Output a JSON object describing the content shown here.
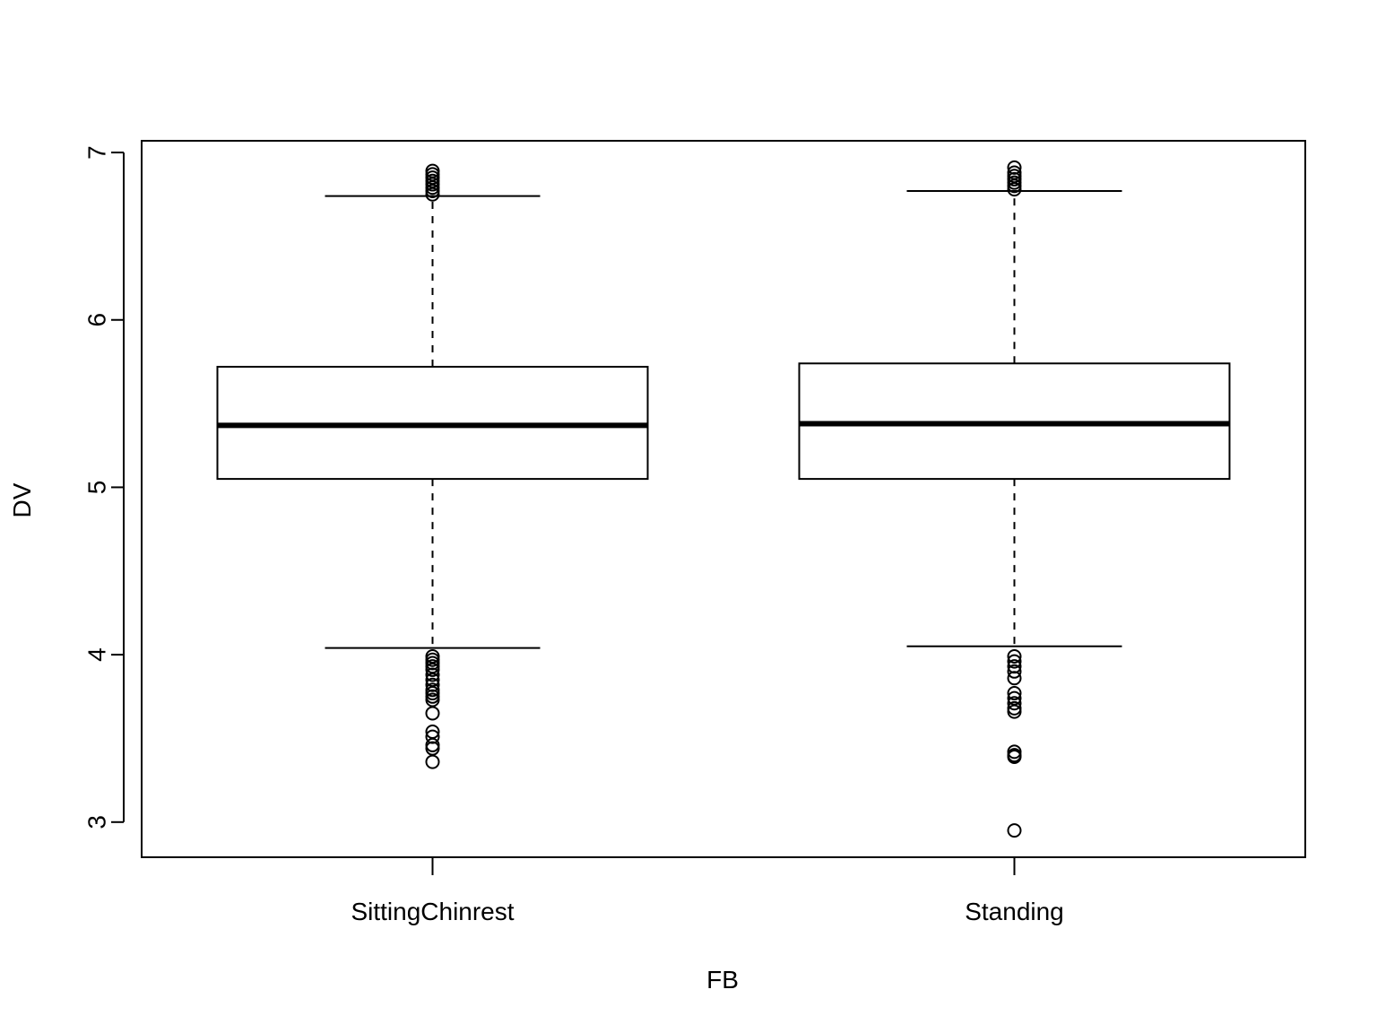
{
  "chart_data": {
    "type": "boxplot",
    "xlabel": "FB",
    "ylabel": "DV",
    "ylim": [
      2.79,
      7.07
    ],
    "y_ticks": [
      "3",
      "4",
      "5",
      "6",
      "7"
    ],
    "grid": false,
    "categories": [
      "SittingChinrest",
      "Standing"
    ],
    "boxes": [
      {
        "category": "SittingChinrest",
        "whisker_low": 4.04,
        "q1": 5.05,
        "median": 5.37,
        "q3": 5.72,
        "whisker_high": 6.74,
        "outliers": [
          6.89,
          6.87,
          6.85,
          6.83,
          6.81,
          6.79,
          6.77,
          6.75,
          3.99,
          3.97,
          3.95,
          3.93,
          3.91,
          3.88,
          3.85,
          3.82,
          3.79,
          3.77,
          3.75,
          3.73,
          3.65,
          3.54,
          3.51,
          3.46,
          3.44,
          3.36
        ]
      },
      {
        "category": "Standing",
        "whisker_low": 4.05,
        "q1": 5.05,
        "median": 5.38,
        "q3": 5.74,
        "whisker_high": 6.77,
        "outliers": [
          6.91,
          6.88,
          6.86,
          6.84,
          6.82,
          6.8,
          6.78,
          3.99,
          3.96,
          3.93,
          3.9,
          3.86,
          3.77,
          3.74,
          3.71,
          3.68,
          3.66,
          3.42,
          3.4,
          3.39,
          2.95
        ]
      }
    ]
  }
}
